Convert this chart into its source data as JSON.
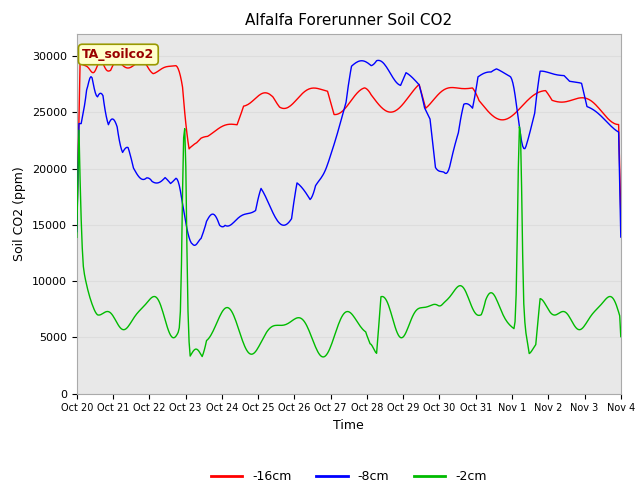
{
  "title": "Alfalfa Forerunner Soil CO2",
  "xlabel": "Time",
  "ylabel": "Soil CO2 (ppm)",
  "legend_label": "TA_soilco2",
  "ylim": [
    0,
    32000
  ],
  "yticks": [
    0,
    5000,
    10000,
    15000,
    20000,
    25000,
    30000
  ],
  "xtick_labels": [
    "Oct 20",
    "Oct 21",
    "Oct 22",
    "Oct 23",
    "Oct 24",
    "Oct 25",
    "Oct 26",
    "Oct 27",
    "Oct 28",
    "Oct 29",
    "Oct 30",
    "Oct 31",
    "Nov 1",
    "Nov 2",
    "Nov 3",
    "Nov 4"
  ],
  "line_colors": {
    "m16cm": "#ff0000",
    "m8cm": "#0000ff",
    "m2cm": "#00bb00"
  },
  "line_labels": {
    "m16cm": "-16cm",
    "m8cm": "-8cm",
    "m2cm": "-2cm"
  },
  "bg_color": "#ffffff",
  "grid_color": "#dddddd",
  "legend_box_color": "#ffffcc",
  "legend_box_edge": "#999900",
  "annotation_text_color": "#990000",
  "fig_facecolor": "#ffffff"
}
